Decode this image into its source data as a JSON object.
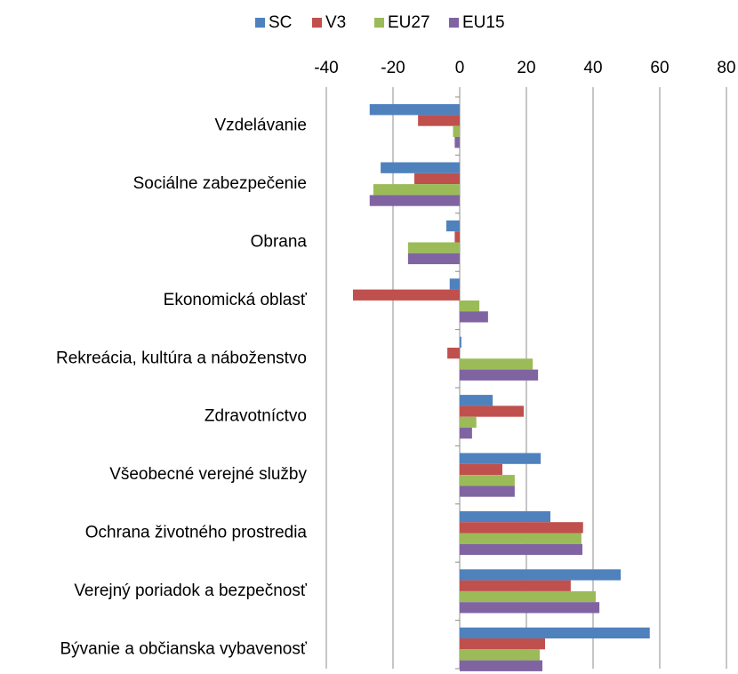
{
  "chart_data": {
    "type": "hbar",
    "categories": [
      "Vzdelávanie",
      "Sociálne zabezpečenie",
      "Obrana",
      "Ekonomická oblasť",
      "Rekreácia, kultúra a náboženstvo",
      "Zdravotníctvo",
      "Všeobecné verejné služby",
      "Ochrana životného prostredia",
      "Verejný poriadok a bezpečnosť",
      "Bývanie a občianska vybavenosť"
    ],
    "series": [
      {
        "name": "SC",
        "color": "#4f81bd",
        "values": [
          -27,
          -23.7,
          -4,
          -3,
          0.5,
          9.9,
          24.3,
          27.2,
          48.3,
          57
        ]
      },
      {
        "name": "V3",
        "color": "#c0504d",
        "values": [
          -12.5,
          -13.6,
          -1.5,
          -32,
          -3.7,
          19.2,
          12.8,
          37,
          33.3,
          25.6
        ]
      },
      {
        "name": "EU27",
        "color": "#9bbb59",
        "values": [
          -2,
          -25.9,
          -15.5,
          5.9,
          21.9,
          5,
          16.5,
          36.5,
          40.8,
          24
        ]
      },
      {
        "name": "EU15",
        "color": "#8064a2",
        "values": [
          -1.5,
          -27,
          -15.5,
          8.5,
          23.5,
          3.7,
          16.5,
          36.8,
          41.9,
          24.8
        ]
      }
    ],
    "xlim": [
      -40,
      80
    ],
    "xticks": [
      -40,
      -20,
      0,
      20,
      40,
      60,
      80
    ],
    "grid": true,
    "legend": "top"
  }
}
